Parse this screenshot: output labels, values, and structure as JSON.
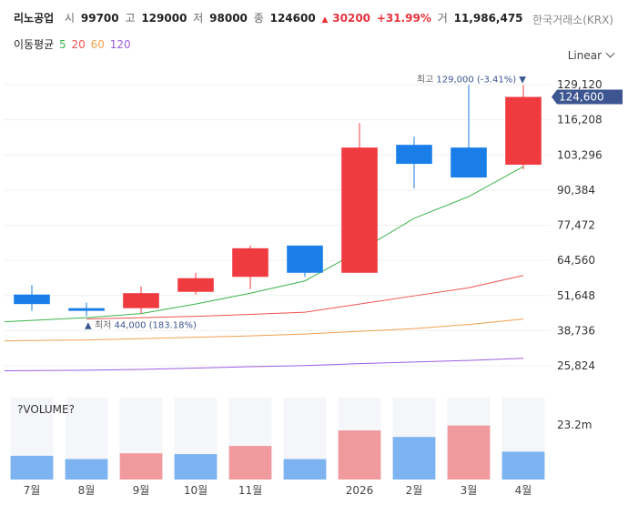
{
  "header": {
    "name": "리노공업",
    "open_label": "시",
    "open": "99700",
    "high_label": "고",
    "high": "129000",
    "low_label": "저",
    "low": "98000",
    "close_label": "종",
    "close": "124600",
    "change_arrow": "▲",
    "change": "30200",
    "change_pct": "+31.99%",
    "volume_label": "거",
    "volume": "11,986,475",
    "exchange": "한국거래소(KRX)"
  },
  "ma_legend": {
    "label": "이동평균",
    "items": [
      {
        "period": "5",
        "color": "#3cb44b"
      },
      {
        "period": "20",
        "color": "#ef5350"
      },
      {
        "period": "60",
        "color": "#f0a050"
      },
      {
        "period": "120",
        "color": "#9c5fe0"
      }
    ]
  },
  "scale_button": "Linear",
  "volume_label": "?VOLUME?",
  "colors": {
    "up": "#ef3a3f",
    "down": "#1a7ee8",
    "vol_up": "#f09a9e",
    "vol_down": "#7eb3f2",
    "badge": "#3d5591"
  },
  "chart_data": {
    "type": "candlestick",
    "months": [
      "7월",
      "8월",
      "9월",
      "10월",
      "11월",
      "",
      "2026",
      "2월",
      "3월",
      "4월"
    ],
    "candles": [
      {
        "open": 52000,
        "close": 48500,
        "high": 55500,
        "low": 46000
      },
      {
        "open": 47000,
        "close": 46000,
        "high": 49000,
        "low": 44000
      },
      {
        "open": 47000,
        "close": 52500,
        "high": 55000,
        "low": 45000
      },
      {
        "open": 53000,
        "close": 58000,
        "high": 60000,
        "low": 52000
      },
      {
        "open": 58500,
        "close": 69000,
        "high": 70000,
        "low": 54000
      },
      {
        "open": 70000,
        "close": 60000,
        "high": 70000,
        "low": 58500
      },
      {
        "open": 60000,
        "close": 106000,
        "high": 115000,
        "low": 60000
      },
      {
        "open": 107000,
        "close": 100000,
        "high": 110000,
        "low": 91000
      },
      {
        "open": 106000,
        "close": 95000,
        "high": 129000,
        "low": 95000
      },
      {
        "open": 99700,
        "close": 124600,
        "high": 129000,
        "low": 98000
      }
    ],
    "ma5": [
      42000,
      43500,
      45000,
      48500,
      52500,
      57000,
      68000,
      80000,
      88000,
      99000
    ],
    "ma20": [
      null,
      43000,
      43500,
      44000,
      44700,
      45500,
      48500,
      51500,
      54500,
      59000
    ],
    "ma60": [
      35000,
      35300,
      35800,
      36300,
      36800,
      37500,
      38500,
      39500,
      41000,
      43000
    ],
    "ma120": [
      24000,
      24200,
      24500,
      25000,
      25500,
      25900,
      26600,
      27200,
      27800,
      28600
    ],
    "volume_up": [
      false,
      false,
      true,
      false,
      true,
      false,
      true,
      false,
      true,
      false
    ],
    "volume_rel": [
      0.29,
      0.25,
      0.32,
      0.31,
      0.41,
      0.25,
      0.6,
      0.52,
      0.66,
      0.34
    ],
    "y_ticks": [
      "129,120",
      "116,208",
      "103,296",
      "90,384",
      "77,472",
      "64,560",
      "51,648",
      "38,736",
      "25,824"
    ],
    "y_tick_values": [
      129120,
      116208,
      103296,
      90384,
      77472,
      64560,
      51648,
      38736,
      25824
    ],
    "volume_tick": "23.2m",
    "last_price_badge": "124,600",
    "last_price": 124600,
    "max_annotation": {
      "label": "최고",
      "value": "129,000 (-3.41%)",
      "arrow": "▼",
      "index": 9,
      "price": 129000
    },
    "min_annotation": {
      "label": "최저",
      "value": "44,000 (183.18%)",
      "arrow": "▲",
      "index": 1,
      "price": 44000
    }
  }
}
